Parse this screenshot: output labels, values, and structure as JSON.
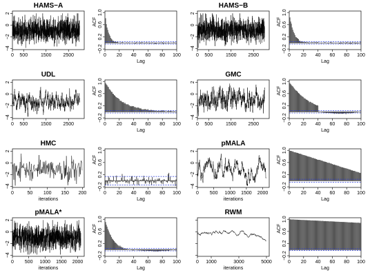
{
  "figure": {
    "rows": 4,
    "cols": 4
  },
  "chart_data": [
    {
      "type": "line",
      "panel_role": "trace",
      "title": "HAMS−A",
      "xlabel": "",
      "ylabel": "",
      "xlim": [
        0,
        3200
      ],
      "ylim": [
        -4.2,
        2.4
      ],
      "xticks": [
        0,
        500,
        1500,
        2500
      ],
      "xtick_labels": [
        "0",
        "500",
        "1500",
        "2500"
      ],
      "yticks": [
        -4,
        -2,
        0,
        2
      ],
      "ytick_labels": [
        "−4",
        "−2",
        "0",
        "2"
      ],
      "series": {
        "n": 3000,
        "mean": -0.9,
        "sd": 1.05,
        "phi": 0.05,
        "min": -3.9,
        "max": 2.0,
        "seed": 11
      }
    },
    {
      "type": "bar",
      "panel_role": "acf",
      "title": "",
      "xlabel": "Lag",
      "ylabel": "ACF",
      "xlim": [
        0,
        100
      ],
      "ylim": [
        -0.22,
        1.05
      ],
      "xticks": [
        0,
        20,
        40,
        60,
        80,
        100
      ],
      "xtick_labels": [
        "0",
        "20",
        "40",
        "60",
        "80",
        "100"
      ],
      "yticks": [
        -0.2,
        0.2,
        0.6,
        1.0
      ],
      "ytick_labels": [
        "−0.2",
        "0.2",
        "0.6",
        "1.0"
      ],
      "series": {
        "shape": "exp",
        "rate": 0.22,
        "floor": 0.0,
        "noise": 0.015,
        "seed": 21
      },
      "confidence_band": 0.04
    },
    {
      "type": "line",
      "panel_role": "trace",
      "title": "HAMS−B",
      "xlabel": "",
      "ylabel": "",
      "xlim": [
        0,
        3200
      ],
      "ylim": [
        -4.2,
        2.4
      ],
      "xticks": [
        0,
        500,
        1500,
        2500
      ],
      "xtick_labels": [
        "0",
        "500",
        "1500",
        "2500"
      ],
      "yticks": [
        -4,
        -2,
        0,
        2
      ],
      "ytick_labels": [
        "−4",
        "−2",
        "0",
        "2"
      ],
      "series": {
        "n": 3000,
        "mean": -0.9,
        "sd": 1.05,
        "phi": 0.1,
        "min": -3.9,
        "max": 2.0,
        "seed": 12
      }
    },
    {
      "type": "bar",
      "panel_role": "acf",
      "title": "",
      "xlabel": "Lag",
      "ylabel": "ACF",
      "xlim": [
        0,
        100
      ],
      "ylim": [
        -0.22,
        1.05
      ],
      "xticks": [
        0,
        20,
        40,
        60,
        80,
        100
      ],
      "xtick_labels": [
        "0",
        "20",
        "40",
        "60",
        "80",
        "100"
      ],
      "yticks": [
        -0.2,
        0.2,
        0.6,
        1.0
      ],
      "ytick_labels": [
        "−0.2",
        "0.2",
        "0.6",
        "1.0"
      ],
      "series": {
        "shape": "exp",
        "rate": 0.17,
        "floor": 0.0,
        "noise": 0.015,
        "seed": 22
      },
      "confidence_band": 0.04
    },
    {
      "type": "line",
      "panel_role": "trace",
      "title": "UDL",
      "xlabel": "",
      "ylabel": "",
      "xlim": [
        0,
        3200
      ],
      "ylim": [
        -4.2,
        2.4
      ],
      "xticks": [
        0,
        500,
        1500,
        2500
      ],
      "xtick_labels": [
        "0",
        "500",
        "1500",
        "2500"
      ],
      "yticks": [
        -4,
        -2,
        0,
        2
      ],
      "ytick_labels": [
        "−4",
        "−2",
        "0",
        "2"
      ],
      "series": {
        "n": 3000,
        "mean": -1.2,
        "sd": 0.9,
        "phi": 0.95,
        "min": -3.9,
        "max": 1.5,
        "seed": 13
      }
    },
    {
      "type": "bar",
      "panel_role": "acf",
      "title": "",
      "xlabel": "Lag",
      "ylabel": "ACF",
      "xlim": [
        0,
        100
      ],
      "ylim": [
        -0.22,
        1.05
      ],
      "xticks": [
        0,
        20,
        40,
        60,
        80,
        100
      ],
      "xtick_labels": [
        "0",
        "20",
        "40",
        "60",
        "80",
        "100"
      ],
      "yticks": [
        -0.2,
        0.2,
        0.6,
        1.0
      ],
      "ytick_labels": [
        "−0.2",
        "0.2",
        "0.6",
        "1.0"
      ],
      "series": {
        "shape": "exp",
        "rate": 0.045,
        "floor": 0.0,
        "noise": 0.01,
        "seed": 23
      },
      "confidence_band": 0.04
    },
    {
      "type": "line",
      "panel_role": "trace",
      "title": "GMC",
      "xlabel": "",
      "ylabel": "",
      "xlim": [
        0,
        3200
      ],
      "ylim": [
        -4.2,
        2.4
      ],
      "xticks": [
        0,
        500,
        1500,
        2500
      ],
      "xtick_labels": [
        "0",
        "500",
        "1500",
        "2500"
      ],
      "yticks": [
        -4,
        -2,
        0,
        2
      ],
      "ytick_labels": [
        "−4",
        "−2",
        "0",
        "2"
      ],
      "series": {
        "n": 3000,
        "mean": -0.9,
        "sd": 0.95,
        "phi": 0.93,
        "min": -3.9,
        "max": 2.0,
        "seed": 14
      }
    },
    {
      "type": "bar",
      "panel_role": "acf",
      "title": "",
      "xlabel": "Lag",
      "ylabel": "ACF",
      "xlim": [
        0,
        100
      ],
      "ylim": [
        -0.22,
        1.05
      ],
      "xticks": [
        0,
        20,
        40,
        60,
        80,
        100
      ],
      "xtick_labels": [
        "0",
        "20",
        "40",
        "60",
        "80",
        "100"
      ],
      "yticks": [
        -0.2,
        0.2,
        0.6,
        1.0
      ],
      "ytick_labels": [
        "−0.2",
        "0.2",
        "0.6",
        "1.0"
      ],
      "series": {
        "shape": "exp",
        "rate": 0.035,
        "floor": -0.06,
        "noise": 0.01,
        "seed": 24
      },
      "confidence_band": 0.04
    },
    {
      "type": "line",
      "panel_role": "trace",
      "title": "HMC",
      "xlabel": "iterations",
      "ylabel": "",
      "xlim": [
        0,
        205
      ],
      "ylim": [
        -4.2,
        2.4
      ],
      "xticks": [
        0,
        50,
        100,
        150,
        200
      ],
      "xtick_labels": [
        "0",
        "50",
        "100",
        "150",
        "200"
      ],
      "yticks": [
        -4,
        -2,
        0,
        2
      ],
      "ytick_labels": [
        "−4",
        "−2",
        "0",
        "2"
      ],
      "series": {
        "n": 200,
        "mean": -1.0,
        "sd": 1.0,
        "phi": 0.05,
        "min": -3.9,
        "max": 1.8,
        "seed": 15
      }
    },
    {
      "type": "bar",
      "panel_role": "acf",
      "title": "",
      "xlabel": "Lag",
      "ylabel": "ACF",
      "xlim": [
        0,
        100
      ],
      "ylim": [
        -0.22,
        1.05
      ],
      "xticks": [
        0,
        20,
        40,
        60,
        80,
        100
      ],
      "xtick_labels": [
        "0",
        "20",
        "40",
        "60",
        "80",
        "100"
      ],
      "yticks": [
        -0.2,
        0.2,
        0.6,
        1.0
      ],
      "ytick_labels": [
        "−0.2",
        "0.2",
        "0.6",
        "1.0"
      ],
      "series": {
        "shape": "noise",
        "rate": 1.0,
        "floor": 0.0,
        "noise": 0.08,
        "seed": 25
      },
      "confidence_band": 0.14
    },
    {
      "type": "line",
      "panel_role": "trace",
      "title": "pMALA",
      "xlabel": "iterations",
      "ylabel": "",
      "xlim": [
        0,
        2200
      ],
      "ylim": [
        -4.2,
        2.4
      ],
      "xticks": [
        0,
        500,
        1000,
        1500,
        2000
      ],
      "xtick_labels": [
        "0",
        "500",
        "1000",
        "1500",
        "2000"
      ],
      "yticks": [
        -4,
        -2,
        0,
        2
      ],
      "ytick_labels": [
        "−4",
        "−2",
        "0",
        "2"
      ],
      "series": {
        "n": 2100,
        "mean": -1.2,
        "sd": 1.1,
        "phi": 0.985,
        "min": -3.9,
        "max": 1.9,
        "seed": 16
      }
    },
    {
      "type": "bar",
      "panel_role": "acf",
      "title": "",
      "xlabel": "Lag",
      "ylabel": "ACF",
      "xlim": [
        0,
        100
      ],
      "ylim": [
        -0.22,
        1.05
      ],
      "xticks": [
        0,
        20,
        40,
        60,
        80,
        100
      ],
      "xtick_labels": [
        "0",
        "20",
        "40",
        "60",
        "80",
        "100"
      ],
      "yticks": [
        -0.2,
        0.2,
        0.6,
        1.0
      ],
      "ytick_labels": [
        "−0.2",
        "0.2",
        "0.6",
        "1.0"
      ],
      "series": {
        "shape": "linear",
        "rate": 0.0075,
        "floor": 0.2,
        "noise": 0.005,
        "seed": 26
      },
      "confidence_band": 0.05
    },
    {
      "type": "line",
      "panel_role": "trace",
      "title": "pMALA*",
      "xlabel": "iterations",
      "ylabel": "",
      "xlim": [
        0,
        2200
      ],
      "ylim": [
        -4.2,
        2.4
      ],
      "xticks": [
        0,
        500,
        1000,
        1500,
        2000
      ],
      "xtick_labels": [
        "0",
        "500",
        "1000",
        "1500",
        "2000"
      ],
      "yticks": [
        -4,
        -2,
        0,
        2
      ],
      "ytick_labels": [
        "−4",
        "−2",
        "0",
        "2"
      ],
      "series": {
        "n": 2100,
        "mean": -1.0,
        "sd": 1.05,
        "phi": 0.2,
        "min": -3.9,
        "max": 2.0,
        "seed": 17
      }
    },
    {
      "type": "bar",
      "panel_role": "acf",
      "title": "",
      "xlabel": "Lag",
      "ylabel": "ACF",
      "xlim": [
        0,
        100
      ],
      "ylim": [
        -0.22,
        1.05
      ],
      "xticks": [
        0,
        20,
        40,
        60,
        80,
        100
      ],
      "xtick_labels": [
        "0",
        "20",
        "40",
        "60",
        "80",
        "100"
      ],
      "yticks": [
        -0.2,
        0.2,
        0.6,
        1.0
      ],
      "ytick_labels": [
        "−0.2",
        "0.2",
        "0.6",
        "1.0"
      ],
      "series": {
        "shape": "exp",
        "rate": 0.09,
        "floor": -0.05,
        "noise": 0.01,
        "seed": 27
      },
      "confidence_band": 0.04
    },
    {
      "type": "line",
      "panel_role": "trace",
      "title": "RWM",
      "xlabel": "iterations",
      "ylabel": "",
      "xlim": [
        0,
        5200
      ],
      "ylim": [
        -4.2,
        2.4
      ],
      "xticks": [
        0,
        1000,
        3000,
        5000
      ],
      "xtick_labels": [
        "0",
        "1000",
        "3000",
        "5000"
      ],
      "yticks": [
        -4,
        -2,
        0,
        2
      ],
      "ytick_labels": [
        "",
        "",
        "",
        ""
      ],
      "series": {
        "n": 5000,
        "mean": -0.5,
        "sd": 0.45,
        "phi": 0.999,
        "min": -1.6,
        "max": 0.3,
        "seed": 18
      }
    },
    {
      "type": "bar",
      "panel_role": "acf",
      "title": "",
      "xlabel": "Lag",
      "ylabel": "ACF",
      "xlim": [
        0,
        100
      ],
      "ylim": [
        -0.22,
        1.05
      ],
      "xticks": [
        0,
        20,
        40,
        60,
        80,
        100
      ],
      "xtick_labels": [
        "0",
        "20",
        "40",
        "60",
        "80",
        "100"
      ],
      "yticks": [
        -0.2,
        0.2,
        0.6,
        1.0
      ],
      "ytick_labels": [
        "−0.2",
        "0.2",
        "0.6",
        "1.0"
      ],
      "series": {
        "shape": "linear",
        "rate": 0.0012,
        "floor": 0.85,
        "noise": 0.002,
        "seed": 28
      },
      "confidence_band": 0.03
    }
  ]
}
